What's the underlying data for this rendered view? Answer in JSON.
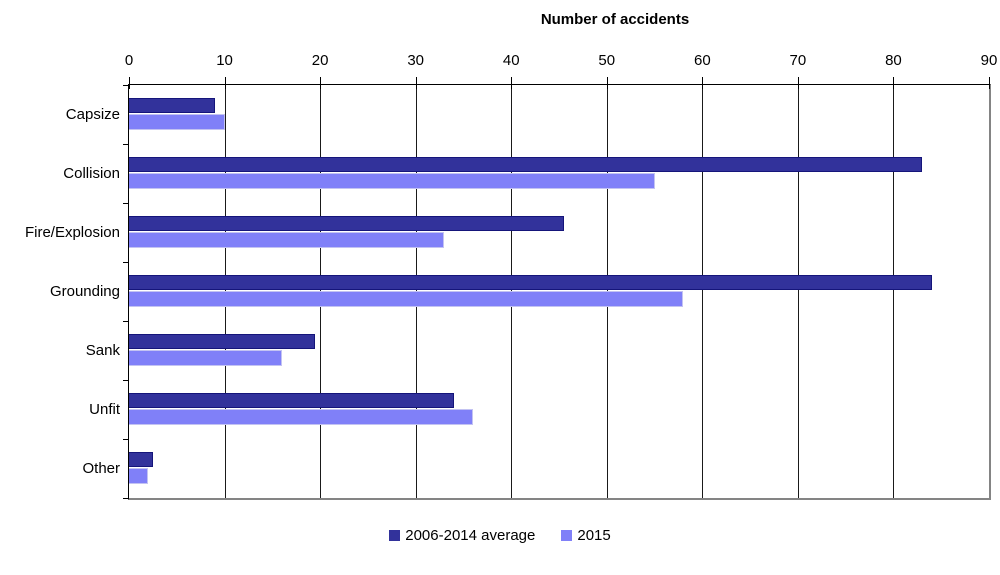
{
  "chart_data": {
    "type": "bar",
    "orientation": "horizontal",
    "title": "Number of accidents",
    "categories": [
      "Capsize",
      "Collision",
      "Fire/Explosion",
      "Grounding",
      "Sank",
      "Unfit",
      "Other"
    ],
    "series": [
      {
        "name": "2006-2014 average",
        "color": "#32329b",
        "values": [
          9,
          83,
          45.5,
          84,
          19.5,
          34,
          2.5
        ]
      },
      {
        "name": "2015",
        "color": "#8080f8",
        "values": [
          10,
          55,
          33,
          58,
          16,
          36,
          2
        ]
      }
    ],
    "xlim": [
      0,
      90
    ],
    "xticks": [
      0,
      10,
      20,
      30,
      40,
      50,
      60,
      70,
      80,
      90
    ],
    "grid": "vertical",
    "legend_position": "bottom",
    "axis_color": "#000000",
    "border_shadow_color": "#848484"
  }
}
